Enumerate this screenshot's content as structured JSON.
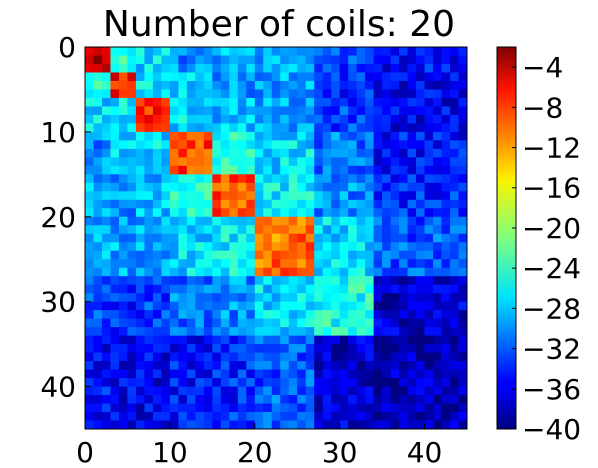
{
  "chart_data": {
    "type": "heatmap",
    "title": "Number of coils: 20",
    "xlabel": "",
    "ylabel": "",
    "size": 45,
    "xlim": [
      0,
      45
    ],
    "ylim": [
      45,
      0
    ],
    "x_ticks": [
      0,
      10,
      20,
      30,
      40
    ],
    "y_ticks": [
      0,
      10,
      20,
      30,
      40
    ],
    "colormap": "jet",
    "colorbar": {
      "range": [
        -40,
        -2
      ],
      "ticks": [
        -4,
        -8,
        -12,
        -16,
        -20,
        -24,
        -28,
        -32,
        -36,
        -40
      ],
      "tick_labels": [
        "−4",
        "−8",
        "−12",
        "−16",
        "−20",
        "−24",
        "−28",
        "−32",
        "−36",
        "−40"
      ]
    },
    "block_boundaries": [
      0,
      3,
      6,
      10,
      15,
      20,
      27,
      34,
      45
    ],
    "diagonal_block_values": [
      -3,
      -7,
      -8,
      -9,
      -10,
      -11,
      -25,
      -38
    ],
    "off_diagonal_block_values": [
      [
        -3,
        -24,
        -27,
        -30,
        -29,
        -29,
        -33,
        -35
      ],
      [
        -24,
        -7,
        -26,
        -28,
        -30,
        -29,
        -34,
        -36
      ],
      [
        -27,
        -26,
        -8,
        -27,
        -28,
        -29,
        -33,
        -36
      ],
      [
        -30,
        -28,
        -27,
        -9,
        -25,
        -27,
        -31,
        -35
      ],
      [
        -29,
        -30,
        -28,
        -25,
        -10,
        -26,
        -30,
        -34
      ],
      [
        -29,
        -29,
        -29,
        -27,
        -26,
        -11,
        -27,
        -32
      ],
      [
        -33,
        -34,
        -33,
        -31,
        -30,
        -27,
        -25,
        -37
      ],
      [
        -35,
        -36,
        -36,
        -35,
        -34,
        -32,
        -37,
        -38
      ]
    ],
    "grid": false,
    "legend": "none"
  }
}
